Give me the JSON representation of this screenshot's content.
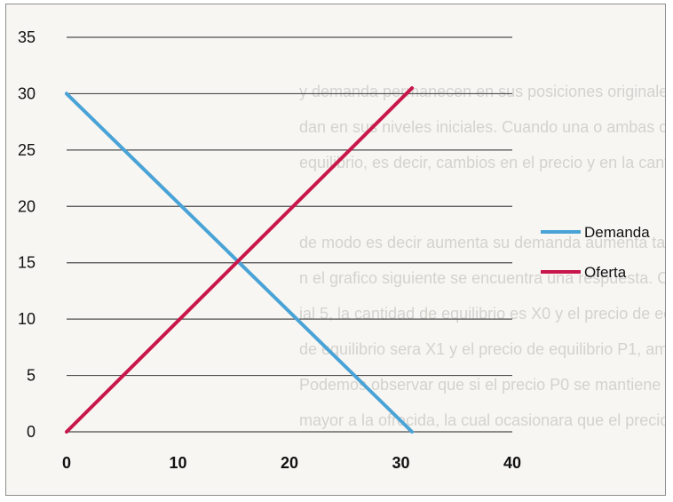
{
  "chart_data": {
    "type": "line",
    "x": [
      0,
      40
    ],
    "xticks": [
      "0",
      "10",
      "20",
      "30",
      "40"
    ],
    "yticks": [
      "0",
      "5",
      "10",
      "15",
      "20",
      "25",
      "30",
      "35"
    ],
    "xlim": [
      0,
      40
    ],
    "ylim": [
      0,
      35
    ],
    "grid": "horizontal",
    "legend_position": "right",
    "series": [
      {
        "name": "Demanda",
        "color": "#4aa3d6",
        "points": [
          [
            0,
            30
          ],
          [
            31,
            0
          ]
        ]
      },
      {
        "name": "Oferta",
        "color": "#c8174a",
        "points": [
          [
            0,
            0
          ],
          [
            31,
            30.5
          ]
        ]
      }
    ],
    "xlabel": "",
    "ylabel": "",
    "title": ""
  }
}
